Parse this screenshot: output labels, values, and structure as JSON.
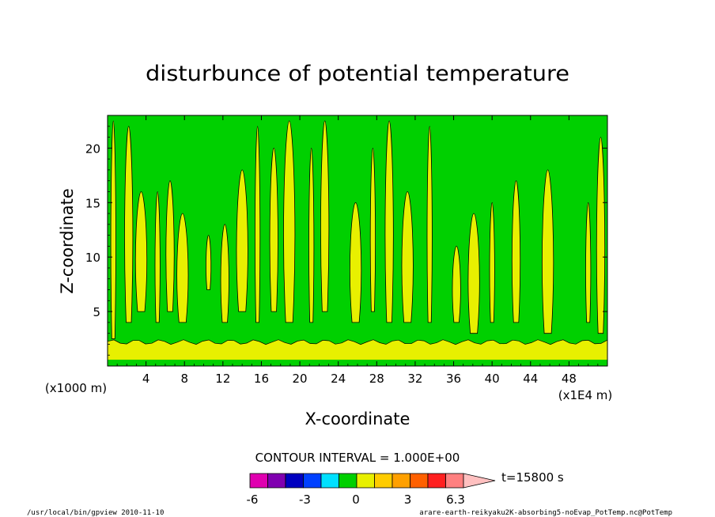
{
  "chart_data": {
    "type": "heatmap",
    "title": "disturbunce of potential temperature",
    "xlabel": "X-coordinate",
    "ylabel": "Z-coordinate",
    "x_unit": "(x1E4 m)",
    "y_unit": "(x1000 m)",
    "xlim": [
      0,
      52
    ],
    "ylim": [
      0,
      23
    ],
    "x_ticks": [
      "4",
      "8",
      "12",
      "16",
      "20",
      "24",
      "28",
      "32",
      "36",
      "40",
      "44",
      "48"
    ],
    "y_ticks": [
      "5",
      "10",
      "15",
      "20"
    ],
    "contour_interval": "CONTOUR INTERVAL = 1.000E+00",
    "time_label": "t=15800 s",
    "colorbar": {
      "colors": [
        "#e000b0",
        "#8000b0",
        "#0000c0",
        "#0040ff",
        "#00e0ff",
        "#00d000",
        "#e8f000",
        "#ffcc00",
        "#ffa000",
        "#ff6000",
        "#ff2020",
        "#ff8080",
        "#ffc0c0"
      ],
      "tick_labels": [
        "-6",
        "-3",
        "0",
        "3",
        "6.3"
      ]
    },
    "field": {
      "background": "#00d000",
      "positive_fill": "#e8f000",
      "boundary_layer_top_z": 2.2,
      "plumes": [
        {
          "x": 0.6,
          "z0": 2.5,
          "z1": 22.5
        },
        {
          "x": 2.2,
          "z0": 4,
          "z1": 22
        },
        {
          "x": 3.5,
          "z0": 5,
          "z1": 16
        },
        {
          "x": 5.2,
          "z0": 4,
          "z1": 16
        },
        {
          "x": 6.5,
          "z0": 5,
          "z1": 17
        },
        {
          "x": 7.8,
          "z0": 4,
          "z1": 14
        },
        {
          "x": 10.5,
          "z0": 7,
          "z1": 12
        },
        {
          "x": 12.2,
          "z0": 4,
          "z1": 13
        },
        {
          "x": 14,
          "z0": 5,
          "z1": 18
        },
        {
          "x": 15.6,
          "z0": 4,
          "z1": 22
        },
        {
          "x": 17.3,
          "z0": 5,
          "z1": 20
        },
        {
          "x": 18.9,
          "z0": 4,
          "z1": 22.5
        },
        {
          "x": 21.2,
          "z0": 4,
          "z1": 20
        },
        {
          "x": 22.6,
          "z0": 5,
          "z1": 22.5
        },
        {
          "x": 25.8,
          "z0": 4,
          "z1": 15
        },
        {
          "x": 27.6,
          "z0": 5,
          "z1": 20
        },
        {
          "x": 29.3,
          "z0": 4,
          "z1": 22.5
        },
        {
          "x": 31.2,
          "z0": 4,
          "z1": 16
        },
        {
          "x": 33.5,
          "z0": 4,
          "z1": 22
        },
        {
          "x": 36.3,
          "z0": 4,
          "z1": 11
        },
        {
          "x": 38.1,
          "z0": 3,
          "z1": 14
        },
        {
          "x": 40,
          "z0": 4,
          "z1": 15
        },
        {
          "x": 42.5,
          "z0": 4,
          "z1": 17
        },
        {
          "x": 45.8,
          "z0": 3,
          "z1": 18
        },
        {
          "x": 50,
          "z0": 4,
          "z1": 15
        },
        {
          "x": 51.3,
          "z0": 3,
          "z1": 21
        }
      ]
    }
  },
  "footer": {
    "left": "/usr/local/bin/gpview  2010-11-10",
    "right": "arare-earth-reikyaku2K-absorbing5-noEvap_PotTemp.nc@PotTemp"
  }
}
